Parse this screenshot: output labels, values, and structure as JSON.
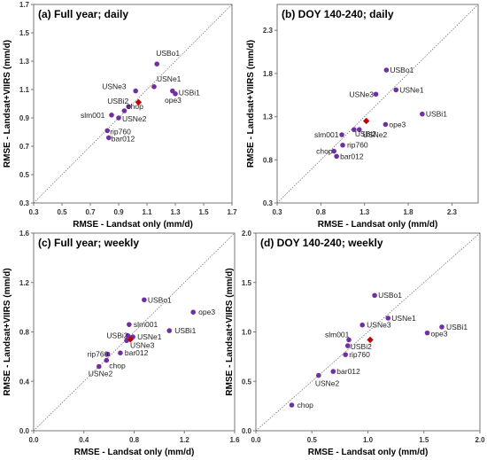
{
  "chart_data": [
    {
      "type": "scatter",
      "title": "(a) Full year; daily",
      "xlabel": "RMSE - Landsat only (mm/d)",
      "ylabel": "RMSE - Landsat+VIIRS (mm/d)",
      "xlim": [
        0.3,
        1.7
      ],
      "ylim": [
        0.3,
        1.7
      ],
      "xticks": [
        "0.3",
        "0.5",
        "0.7",
        "0.9",
        "1.1",
        "1.3",
        "1.5",
        "1.7"
      ],
      "yticks": [
        "0.3",
        "0.5",
        "0.7",
        "0.9",
        "1.1",
        "1.3",
        "1.5",
        "1.7"
      ],
      "identity_line": true,
      "colors": {
        "point": "#7030a0",
        "highlight": "#c00000"
      },
      "points": [
        {
          "label": "USBo1",
          "x": 1.17,
          "y": 1.28
        },
        {
          "label": "USNe1",
          "x": 1.15,
          "y": 1.12
        },
        {
          "label": "USNe3",
          "x": 1.02,
          "y": 1.09
        },
        {
          "label": "USBi1",
          "x": 1.28,
          "y": 1.09
        },
        {
          "label": "ope3",
          "x": 1.3,
          "y": 1.07
        },
        {
          "label": "USBi2",
          "x": 0.97,
          "y": 0.98
        },
        {
          "label": "chop",
          "x": 0.94,
          "y": 0.95
        },
        {
          "label": "slm001",
          "x": 0.85,
          "y": 0.92
        },
        {
          "label": "USNe2",
          "x": 0.9,
          "y": 0.9
        },
        {
          "label": "rip760",
          "x": 0.82,
          "y": 0.81
        },
        {
          "label": "bar012",
          "x": 0.83,
          "y": 0.76
        },
        {
          "label": "",
          "x": 1.04,
          "y": 1.01,
          "highlight": true
        }
      ]
    },
    {
      "type": "scatter",
      "title": "(b) DOY 140-240; daily",
      "xlabel": "RMSE - Landsat only (mm/d)",
      "ylabel": "RMSE - Landsat+VIIRS (mm/d)",
      "xlim": [
        0.3,
        2.6
      ],
      "ylim": [
        0.3,
        2.6
      ],
      "xticks": [
        "0.3",
        "0.8",
        "1.3",
        "1.8",
        "2.3"
      ],
      "yticks": [
        "0.3",
        "0.8",
        "1.3",
        "1.8",
        "2.3"
      ],
      "identity_line": true,
      "colors": {
        "point": "#7030a0",
        "highlight": "#c00000"
      },
      "points": [
        {
          "label": "USBo1",
          "x": 1.55,
          "y": 1.84
        },
        {
          "label": "USNe1",
          "x": 1.66,
          "y": 1.61
        },
        {
          "label": "USNe3",
          "x": 1.43,
          "y": 1.56
        },
        {
          "label": "USBi1",
          "x": 1.96,
          "y": 1.33
        },
        {
          "label": "ope3",
          "x": 1.54,
          "y": 1.21
        },
        {
          "label": "USNe2",
          "x": 1.24,
          "y": 1.15
        },
        {
          "label": "USBi2",
          "x": 1.18,
          "y": 1.15
        },
        {
          "label": "slm001",
          "x": 1.04,
          "y": 1.09
        },
        {
          "label": "rip760",
          "x": 1.05,
          "y": 0.97
        },
        {
          "label": "chop",
          "x": 0.95,
          "y": 0.9
        },
        {
          "label": "bar012",
          "x": 0.98,
          "y": 0.84
        },
        {
          "label": "",
          "x": 1.32,
          "y": 1.25,
          "highlight": true
        }
      ]
    },
    {
      "type": "scatter",
      "title": "(c) Full year; weekly",
      "xlabel": "RMSE - Landsat only (mm/d)",
      "ylabel": "RMSE - Landsat+VIIRS (mm/d)",
      "xlim": [
        0.0,
        1.6
      ],
      "ylim": [
        0.0,
        1.6
      ],
      "xticks": [
        "0.0",
        "0.4",
        "0.8",
        "1.2",
        "1.6"
      ],
      "yticks": [
        "0.0",
        "0.4",
        "0.8",
        "1.2",
        "1.6"
      ],
      "identity_line": true,
      "colors": {
        "point": "#7030a0",
        "highlight": "#c00000"
      },
      "points": [
        {
          "label": "USBo1",
          "x": 0.88,
          "y": 1.06
        },
        {
          "label": "ope3",
          "x": 1.27,
          "y": 0.96
        },
        {
          "label": "slm001",
          "x": 0.76,
          "y": 0.86
        },
        {
          "label": "USBi1",
          "x": 1.08,
          "y": 0.81
        },
        {
          "label": "USBi2",
          "x": 0.75,
          "y": 0.77
        },
        {
          "label": "USNe1",
          "x": 0.79,
          "y": 0.76
        },
        {
          "label": "USNe3",
          "x": 0.74,
          "y": 0.73
        },
        {
          "label": "bar012",
          "x": 0.69,
          "y": 0.63
        },
        {
          "label": "rip760",
          "x": 0.59,
          "y": 0.62
        },
        {
          "label": "chop",
          "x": 0.58,
          "y": 0.57
        },
        {
          "label": "USNe2",
          "x": 0.52,
          "y": 0.52
        },
        {
          "label": "",
          "x": 0.77,
          "y": 0.74,
          "highlight": true
        }
      ]
    },
    {
      "type": "scatter",
      "title": "(d) DOY 140-240; weekly",
      "xlabel": "RMSE - Landsat only (mm/d)",
      "ylabel": "RMSE - Landsat+VIIRS (mm/d)",
      "xlim": [
        0.0,
        2.0
      ],
      "ylim": [
        0.0,
        2.0
      ],
      "xticks": [
        "0.0",
        "0.5",
        "1.0",
        "1.5",
        "2.0"
      ],
      "yticks": [
        "0.0",
        "0.5",
        "1.0",
        "1.5",
        "2.0"
      ],
      "identity_line": true,
      "colors": {
        "point": "#7030a0",
        "highlight": "#c00000"
      },
      "points": [
        {
          "label": "USBo1",
          "x": 1.06,
          "y": 1.37
        },
        {
          "label": "USNe1",
          "x": 1.18,
          "y": 1.14
        },
        {
          "label": "USNe3",
          "x": 0.95,
          "y": 1.07
        },
        {
          "label": "USBi1",
          "x": 1.66,
          "y": 1.05
        },
        {
          "label": "ope3",
          "x": 1.53,
          "y": 0.99
        },
        {
          "label": "slm001",
          "x": 0.83,
          "y": 0.92
        },
        {
          "label": "USBi2",
          "x": 0.82,
          "y": 0.86
        },
        {
          "label": "rip760",
          "x": 0.8,
          "y": 0.77
        },
        {
          "label": "bar012",
          "x": 0.69,
          "y": 0.6
        },
        {
          "label": "USNe2",
          "x": 0.56,
          "y": 0.56
        },
        {
          "label": "chop",
          "x": 0.32,
          "y": 0.26
        },
        {
          "label": "",
          "x": 1.02,
          "y": 0.92,
          "highlight": true
        }
      ]
    }
  ]
}
